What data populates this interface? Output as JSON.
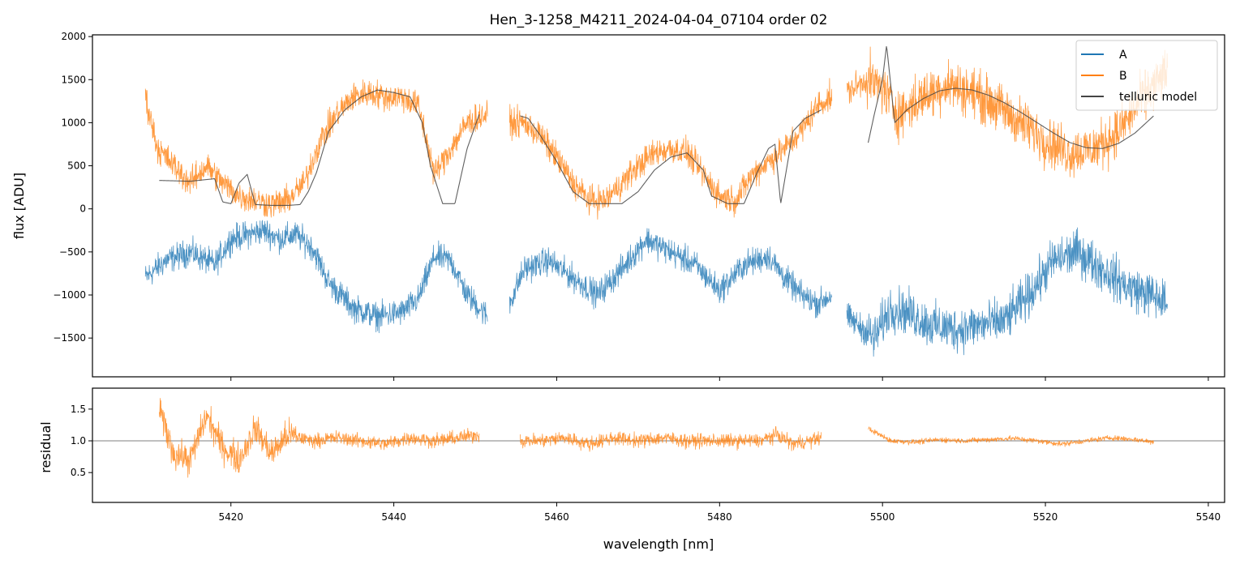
{
  "chart_data": [
    {
      "type": "line",
      "title": "Hen_3-1258_M4211_2024-04-04_07104  order 02",
      "ylabel": "flux [ADU]",
      "xlabel": "",
      "xlim": [
        5403,
        5542
      ],
      "ylim": [
        -1950,
        2020
      ],
      "x_ticks": [
        5420,
        5440,
        5460,
        5480,
        5500,
        5520,
        5540
      ],
      "y_ticks": [
        -1500,
        -1000,
        -500,
        0,
        500,
        1000,
        1500,
        2000
      ],
      "y_tick_labels": [
        "−1500",
        "−1000",
        "−500",
        "0",
        "500",
        "1000",
        "1500",
        "2000"
      ],
      "legend_position": "top-right",
      "x_segments": [
        [
          5409.5,
          5451.5
        ],
        [
          5454.2,
          5493.8
        ],
        [
          5495.6,
          5535.0
        ]
      ],
      "series": [
        {
          "name": "A",
          "color": "#1f77b4",
          "x": [
            5409.5,
            5412,
            5415,
            5418,
            5420,
            5422,
            5424,
            5426,
            5428,
            5430,
            5432,
            5435,
            5438,
            5441,
            5443,
            5445,
            5447,
            5449,
            5451.5,
            5454.2,
            5456,
            5459,
            5462,
            5465,
            5468,
            5471,
            5474,
            5477,
            5480,
            5483,
            5486,
            5488,
            5490,
            5492,
            5493.8,
            5495.6,
            5497,
            5499,
            5501,
            5503,
            5506,
            5509,
            5512,
            5515,
            5518,
            5521,
            5524,
            5527,
            5530,
            5533,
            5535.0
          ],
          "values": [
            -800,
            -600,
            -500,
            -650,
            -350,
            -300,
            -250,
            -350,
            -300,
            -450,
            -850,
            -1150,
            -1250,
            -1200,
            -1050,
            -550,
            -600,
            -1000,
            -1250,
            -1100,
            -700,
            -600,
            -800,
            -1000,
            -700,
            -350,
            -500,
            -650,
            -950,
            -650,
            -550,
            -800,
            -1000,
            -1100,
            -1000,
            -1250,
            -1350,
            -1500,
            -1150,
            -1200,
            -1350,
            -1400,
            -1350,
            -1300,
            -1000,
            -600,
            -500,
            -700,
            -900,
            -1000,
            -1100
          ]
        },
        {
          "name": "B",
          "color": "#ff7f0e",
          "x": [
            5409.5,
            5411,
            5413,
            5415,
            5417,
            5419,
            5421,
            5423,
            5425,
            5427,
            5429,
            5431,
            5433,
            5435,
            5437,
            5439,
            5441,
            5443,
            5445,
            5447,
            5449,
            5451.5,
            5454.2,
            5456,
            5458,
            5460,
            5462,
            5464,
            5466,
            5468,
            5470,
            5472,
            5474,
            5476,
            5478,
            5480,
            5482,
            5484,
            5486,
            5488,
            5490,
            5492,
            5493.8,
            5495.6,
            5498,
            5500,
            5502,
            5505,
            5508,
            5511,
            5514,
            5517,
            5520,
            5523,
            5526,
            5529,
            5532,
            5535.0
          ],
          "values": [
            1300,
            700,
            500,
            300,
            500,
            300,
            150,
            100,
            50,
            100,
            300,
            800,
            1100,
            1300,
            1350,
            1300,
            1300,
            1200,
            400,
            700,
            1000,
            1100,
            1000,
            1000,
            850,
            600,
            300,
            100,
            100,
            300,
            500,
            650,
            700,
            650,
            400,
            150,
            100,
            400,
            550,
            700,
            900,
            1200,
            1300,
            1350,
            1500,
            1400,
            1100,
            1300,
            1450,
            1350,
            1200,
            1000,
            800,
            650,
            700,
            900,
            1300,
            1600
          ]
        },
        {
          "name": "telluric model",
          "color": "#444444",
          "x": [
            5411.2,
            5415,
            5418,
            5419,
            5420,
            5421,
            5422,
            5423,
            5425,
            5427,
            5428.5,
            5429.5,
            5430.5,
            5432,
            5434,
            5436,
            5438,
            5440,
            5442,
            5443.5,
            5444.5,
            5446,
            5447.5,
            5449,
            5450.5,
            5455.5,
            5456.5,
            5458,
            5460,
            5462,
            5464,
            5466,
            5468,
            5470,
            5472,
            5474,
            5476,
            5478,
            5479,
            5481,
            5483,
            5484.5,
            5486,
            5486.8,
            5487.5,
            5489,
            5490.5,
            5491.5,
            5492.5,
            5498.2,
            5499,
            5500,
            5500.5,
            5501.5,
            5503,
            5505,
            5507,
            5509,
            5511,
            5513,
            5515,
            5517,
            5519,
            5521,
            5523,
            5525,
            5527,
            5529,
            5531,
            5533.3
          ],
          "values": [
            330,
            320,
            350,
            80,
            60,
            300,
            400,
            50,
            40,
            40,
            50,
            200,
            420,
            900,
            1150,
            1300,
            1380,
            1350,
            1300,
            1000,
            500,
            60,
            60,
            700,
            1100,
            1080,
            1050,
            850,
            550,
            200,
            60,
            60,
            60,
            200,
            450,
            600,
            650,
            450,
            150,
            60,
            60,
            400,
            700,
            750,
            60,
            900,
            1050,
            1100,
            1150,
            750,
            1100,
            1500,
            1900,
            1000,
            1150,
            1280,
            1370,
            1400,
            1380,
            1320,
            1230,
            1120,
            1000,
            880,
            770,
            710,
            700,
            760,
            880,
            1080
          ]
        }
      ]
    },
    {
      "type": "line",
      "title": "",
      "ylabel": "residual",
      "xlabel": "wavelength [nm]",
      "xlim": [
        5403,
        5542
      ],
      "ylim": [
        0.03,
        1.83
      ],
      "x_ticks": [
        5420,
        5440,
        5460,
        5480,
        5500,
        5520,
        5540
      ],
      "y_ticks": [
        0.5,
        1.0,
        1.5
      ],
      "y_tick_labels": [
        "0.5",
        "1.0",
        "1.5"
      ],
      "reference_line": 1.0,
      "x_segments": [
        [
          5411.2,
          5450.5
        ],
        [
          5455.5,
          5492.5
        ],
        [
          5498.2,
          5533.3
        ]
      ],
      "series": [
        {
          "name": "",
          "color": "#ff7f0e",
          "x": [
            5411.2,
            5413,
            5415,
            5417,
            5419,
            5421,
            5423,
            5425,
            5427,
            5430,
            5433,
            5436,
            5439,
            5442,
            5445,
            5448,
            5450.5,
            5455.5,
            5458,
            5461,
            5464,
            5467,
            5470,
            5473,
            5476,
            5479,
            5482,
            5485,
            5487,
            5489,
            5491,
            5492.5,
            5498.2,
            5501,
            5504,
            5507,
            5510,
            5513,
            5516,
            5519,
            5522,
            5525,
            5528,
            5531,
            5533.3
          ],
          "values": [
            1.5,
            0.8,
            0.7,
            1.4,
            0.9,
            0.7,
            1.2,
            0.8,
            1.1,
            1.0,
            1.05,
            1.0,
            0.95,
            1.05,
            1.0,
            1.05,
            1.1,
            1.0,
            1.0,
            1.05,
            0.95,
            1.05,
            1.0,
            1.05,
            1.0,
            1.0,
            1.0,
            1.0,
            1.1,
            0.95,
            1.0,
            1.05,
            1.2,
            1.0,
            0.98,
            1.02,
            1.0,
            1.02,
            1.04,
            1.0,
            0.95,
            1.0,
            1.05,
            1.02,
            0.98
          ]
        }
      ]
    }
  ]
}
